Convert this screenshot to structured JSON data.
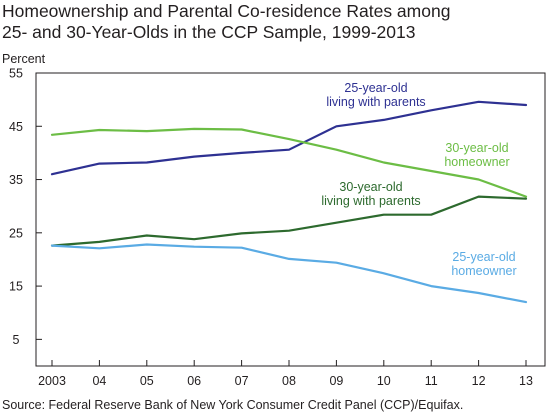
{
  "title_lines": [
    "Homeownership and Parental Co-residence Rates among",
    "25- and 30-Year-Olds in the CCP Sample, 1999-2013"
  ],
  "y_unit": "Percent",
  "source": "Source: Federal Reserve Bank of New York Consumer Credit Panel (CCP)/Equifax.",
  "chart_data": {
    "type": "line",
    "title": "Homeownership and Parental Co-residence Rates among 25- and 30-Year-Olds in the CCP Sample, 1999-2013",
    "ylabel": "Percent",
    "categories": [
      "2003",
      "04",
      "05",
      "06",
      "07",
      "08",
      "09",
      "10",
      "11",
      "12",
      "13"
    ],
    "ylim": [
      0,
      55
    ],
    "yticks": [
      5,
      15,
      25,
      35,
      45,
      55
    ],
    "grid": false,
    "series": [
      {
        "name": "25-year-old living with parents",
        "label_lines": [
          "25-year-old",
          "living with parents"
        ],
        "color": "#2e3192",
        "values": [
          36.0,
          38.0,
          38.2,
          39.3,
          40.0,
          40.6,
          45.0,
          46.2,
          48.0,
          49.6,
          49.0
        ]
      },
      {
        "name": "30-year-old homeowner",
        "label_lines": [
          "30-year-old",
          "homeowner"
        ],
        "color": "#6cbd45",
        "values": [
          43.4,
          44.3,
          44.1,
          44.5,
          44.4,
          42.6,
          40.6,
          38.2,
          36.6,
          35.0,
          31.8
        ]
      },
      {
        "name": "30-year-old living with parents",
        "label_lines": [
          "30-year-old",
          "living with parents"
        ],
        "color": "#2d6a2e",
        "values": [
          22.6,
          23.3,
          24.5,
          23.8,
          24.9,
          25.4,
          26.9,
          28.4,
          28.4,
          31.8,
          31.4
        ]
      },
      {
        "name": "25-year-old homeowner",
        "label_lines": [
          "25-year-old",
          "homeowner"
        ],
        "color": "#5aabe4",
        "values": [
          22.6,
          22.1,
          22.8,
          22.4,
          22.2,
          20.1,
          19.4,
          17.4,
          15.0,
          13.7,
          12.0
        ]
      }
    ]
  }
}
